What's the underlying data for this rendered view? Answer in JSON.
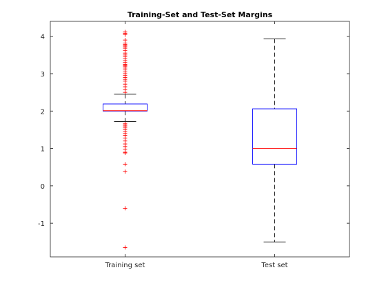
{
  "chart_data": {
    "type": "box",
    "title": "Training-Set and Test-Set Margins",
    "xlabel": "",
    "ylabel": "",
    "ylim": [
      -1.9,
      4.4
    ],
    "yticks": [
      -1,
      0,
      1,
      2,
      3,
      4
    ],
    "ytick_labels": [
      "-1",
      "0",
      "1",
      "2",
      "3",
      "4"
    ],
    "grid": false,
    "legend": "none",
    "categories": [
      "Training set",
      "Test set"
    ],
    "boxes": [
      {
        "category": "Training set",
        "whisker_low": 1.72,
        "q1": 2.0,
        "median": 2.01,
        "q3": 2.19,
        "whisker_high": 2.45,
        "outliers": [
          4.12,
          4.08,
          4.04,
          3.9,
          3.82,
          3.78,
          3.75,
          3.72,
          3.68,
          3.62,
          3.55,
          3.5,
          3.45,
          3.4,
          3.35,
          3.3,
          3.25,
          3.22,
          3.2,
          3.15,
          3.1,
          3.05,
          3.0,
          2.95,
          2.9,
          2.85,
          2.8,
          2.72,
          2.65,
          2.58,
          2.5,
          1.66,
          1.63,
          1.6,
          1.55,
          1.5,
          1.45,
          1.4,
          1.35,
          1.28,
          1.2,
          1.12,
          1.05,
          0.98,
          0.9,
          0.88,
          0.58,
          0.38,
          -0.6,
          -1.65
        ]
      },
      {
        "category": "Test set",
        "whisker_low": -1.5,
        "q1": 0.58,
        "median": 1.0,
        "q3": 2.06,
        "whisker_high": 3.93,
        "outliers": []
      }
    ],
    "colors": {
      "box": "#0000ff",
      "median": "#ff0000",
      "outlier": "#ff0000",
      "whisker": "#000000",
      "axes": "#262626"
    }
  }
}
